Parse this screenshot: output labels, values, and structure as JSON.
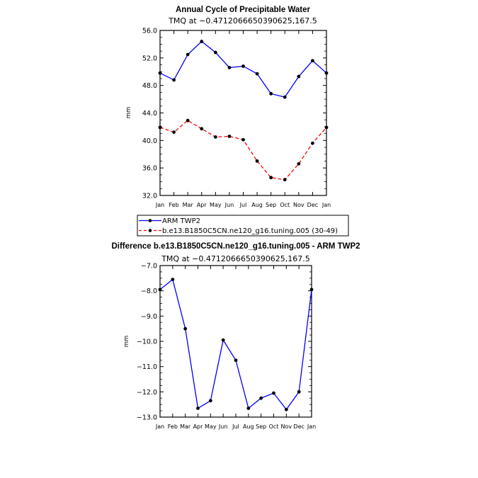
{
  "chart_data": [
    {
      "type": "line",
      "title": "Annual Cycle of Precipitable Water",
      "subtitle": "TMQ at −0.4712066650390625,167.5",
      "ylabel": "mm",
      "ylim": [
        32.0,
        56.0
      ],
      "yticks": [
        "32.0",
        "36.0",
        "40.0",
        "44.0",
        "48.0",
        "52.0",
        "56.0"
      ],
      "categories": [
        "Jan",
        "Feb",
        "Mar",
        "Apr",
        "May",
        "Jun",
        "Jul",
        "Aug",
        "Sep",
        "Oct",
        "Nov",
        "Dec",
        "Jan"
      ],
      "series": [
        {
          "name": "ARM TWP2",
          "color": "#0000ff",
          "dash": "solid",
          "values": [
            49.8,
            48.8,
            52.5,
            54.4,
            52.8,
            50.6,
            50.8,
            49.7,
            46.8,
            46.3,
            49.3,
            51.6,
            49.8
          ]
        },
        {
          "name": "b.e13.B1850C5CN.ne120_g16.tuning.005 (30-49)",
          "color": "#ff0000",
          "dash": "dashed",
          "values": [
            41.9,
            41.2,
            42.9,
            41.7,
            40.5,
            40.6,
            40.1,
            37.0,
            34.6,
            34.3,
            36.6,
            39.6,
            41.9
          ]
        }
      ],
      "legend_placement": "below"
    },
    {
      "type": "line",
      "title": "Difference b.e13.B1850C5CN.ne120_g16.tuning.005 - ARM TWP2",
      "subtitle": "TMQ at −0.4712066650390625,167.5",
      "ylabel": "mm",
      "ylim": [
        -13.0,
        -7.0
      ],
      "yticks": [
        "−13.0",
        "−12.0",
        "−11.0",
        "−10.0",
        "−9.0",
        "−8.0",
        "−7.0"
      ],
      "categories": [
        "Jan",
        "Feb",
        "Mar",
        "Apr",
        "May",
        "Jun",
        "Jul",
        "Aug",
        "Sep",
        "Oct",
        "Nov",
        "Dec",
        "Jan"
      ],
      "series": [
        {
          "color": "#0000ff",
          "dash": "solid",
          "values": [
            -7.95,
            -7.55,
            -9.5,
            -12.65,
            -12.35,
            -9.95,
            -10.75,
            -12.65,
            -12.25,
            -12.05,
            -12.7,
            -12.0,
            -7.95
          ]
        }
      ]
    }
  ]
}
